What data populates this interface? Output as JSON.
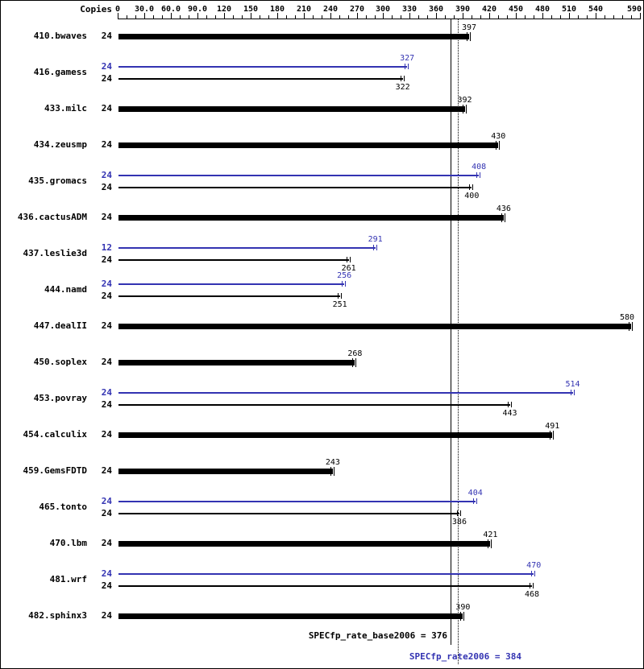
{
  "header": {
    "copies_label": "Copies"
  },
  "colors": {
    "base": "#000000",
    "peak": "#3333b2"
  },
  "axis": {
    "ticks": [
      0,
      30,
      60,
      90,
      120,
      150,
      180,
      210,
      240,
      270,
      300,
      330,
      360,
      390,
      420,
      450,
      480,
      510,
      540
    ],
    "tick_labels": [
      "0",
      "30.0",
      "60.0",
      "90.0",
      "120",
      "150",
      "180",
      "210",
      "240",
      "270",
      "300",
      "330",
      "360",
      "390",
      "420",
      "450",
      "480",
      "510",
      "540"
    ],
    "end_label": "590"
  },
  "summary": {
    "base_label": "SPECfp_rate_base2006 = 376",
    "peak_label": "SPECfp_rate2006 = 384",
    "base_value": 376,
    "peak_value": 384
  },
  "chart_data": {
    "type": "bar",
    "orientation": "horizontal",
    "title": "",
    "xlabel": "",
    "ylabel": "Copies",
    "xlim": [
      0,
      590
    ],
    "grid": false,
    "legend": [
      "base result (black bar)",
      "peak result (blue bar)"
    ],
    "means": {
      "SPECfp_rate_base2006": 376,
      "SPECfp_rate2006": 384
    },
    "benchmarks": [
      {
        "name": "410.bwaves",
        "base_copies": 24,
        "base": 397
      },
      {
        "name": "416.gamess",
        "peak_copies": 24,
        "peak": 327,
        "base_copies": 24,
        "base": 322
      },
      {
        "name": "433.milc",
        "base_copies": 24,
        "base": 392
      },
      {
        "name": "434.zeusmp",
        "base_copies": 24,
        "base": 430
      },
      {
        "name": "435.gromacs",
        "peak_copies": 24,
        "peak": 408,
        "base_copies": 24,
        "base": 400
      },
      {
        "name": "436.cactusADM",
        "base_copies": 24,
        "base": 436
      },
      {
        "name": "437.leslie3d",
        "peak_copies": 12,
        "peak": 291,
        "base_copies": 24,
        "base": 261
      },
      {
        "name": "444.namd",
        "peak_copies": 24,
        "peak": 256,
        "base_copies": 24,
        "base": 251
      },
      {
        "name": "447.dealII",
        "base_copies": 24,
        "base": 580
      },
      {
        "name": "450.soplex",
        "base_copies": 24,
        "base": 268
      },
      {
        "name": "453.povray",
        "peak_copies": 24,
        "peak": 514,
        "base_copies": 24,
        "base": 443
      },
      {
        "name": "454.calculix",
        "base_copies": 24,
        "base": 491
      },
      {
        "name": "459.GemsFDTD",
        "base_copies": 24,
        "base": 243
      },
      {
        "name": "465.tonto",
        "peak_copies": 24,
        "peak": 404,
        "base_copies": 24,
        "base": 386
      },
      {
        "name": "470.lbm",
        "base_copies": 24,
        "base": 421
      },
      {
        "name": "481.wrf",
        "peak_copies": 24,
        "peak": 470,
        "base_copies": 24,
        "base": 468
      },
      {
        "name": "482.sphinx3",
        "base_copies": 24,
        "base": 390
      }
    ]
  }
}
